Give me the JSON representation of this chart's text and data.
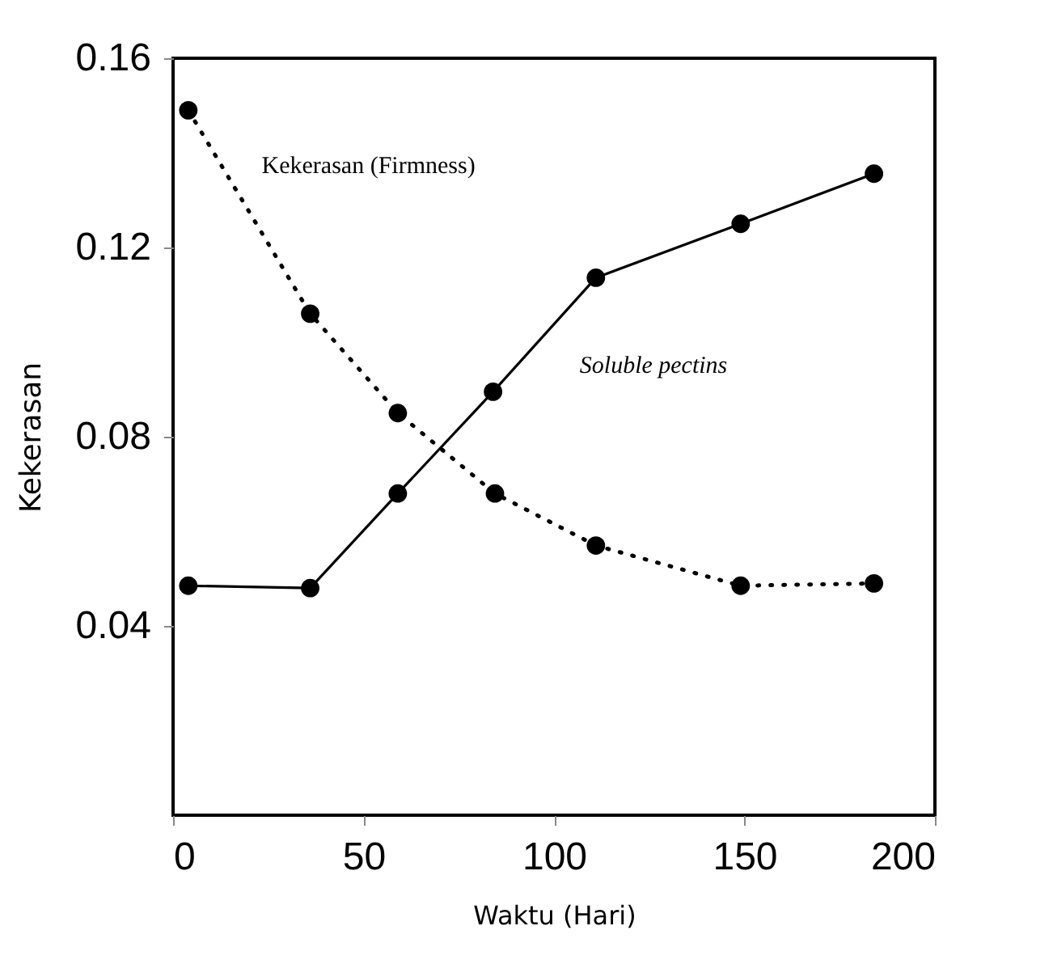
{
  "chart_data": {
    "type": "line",
    "xlabel": "Waktu (Hari)",
    "ylabel": "Kekerasan",
    "xlim": [
      0,
      200
    ],
    "xticks": [
      0,
      50,
      100,
      150,
      200
    ],
    "ylim": [
      0,
      0.16
    ],
    "yticks": [
      0.04,
      0.08,
      0.12,
      0.16
    ],
    "grid": false,
    "marker": "circle",
    "series": [
      {
        "name": "Kekerasan (Firmness)",
        "color": "#000000",
        "line_style": "dotted",
        "x": [
          4,
          36,
          59,
          84.5,
          111,
          149,
          184
        ],
        "values": [
          0.149,
          0.106,
          0.085,
          0.068,
          0.057,
          0.0485,
          0.049
        ]
      },
      {
        "name": "Soluble pectins",
        "color": "#000000",
        "line_style": "solid",
        "x": [
          4,
          36,
          59,
          84,
          111,
          149,
          184
        ],
        "values": [
          0.0485,
          0.048,
          0.068,
          0.0895,
          0.1136,
          0.125,
          0.1356
        ]
      }
    ]
  }
}
